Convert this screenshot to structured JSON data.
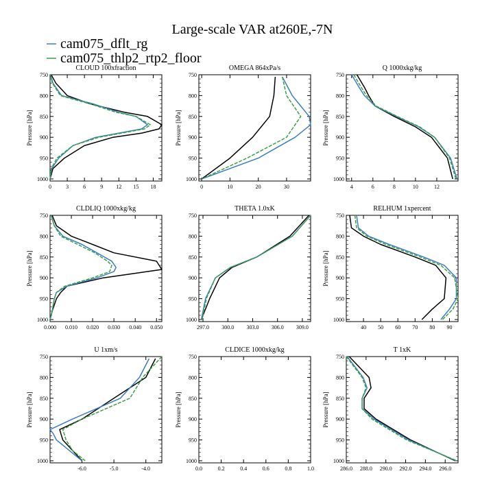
{
  "title": "Large-scale VAR at260E,-7N",
  "legend": [
    {
      "label": "cam075_dflt_rg",
      "color": "#3a7dc4"
    },
    {
      "label": "cam075_thlp2_rtp2_floor",
      "color": "#3aa040"
    }
  ],
  "colors": {
    "ref": "#000000",
    "dflt": "#3a7dc4",
    "thlp2": "#3aa040"
  },
  "ylabel": "Pressure [hPa]",
  "chart_data": [
    {
      "type": "line",
      "title": "CLOUD  100xfraction",
      "ylabel": "Pressure [hPa]",
      "xlim": [
        0,
        19.5
      ],
      "xticks": [
        0,
        3,
        6,
        9,
        12,
        15,
        18
      ],
      "xtick_labels": [
        "0",
        "3",
        "6",
        "9",
        "12",
        "15",
        "18"
      ],
      "ylim": [
        1005,
        750
      ],
      "yticks": [
        750,
        800,
        850,
        900,
        950,
        1000
      ],
      "ytick_labels": [
        "750",
        "800",
        "850",
        "900",
        "950",
        "1000"
      ],
      "series": [
        {
          "key": "ref",
          "p": [
            750,
            770,
            800,
            820,
            840,
            850,
            870,
            880,
            890,
            900,
            920,
            950,
            975,
            1000
          ],
          "x": [
            0.2,
            1,
            3,
            7,
            13,
            17,
            19.5,
            19,
            16,
            11,
            6,
            2.5,
            0.5,
            0
          ]
        },
        {
          "key": "dflt",
          "p": [
            750,
            770,
            800,
            820,
            840,
            850,
            870,
            880,
            890,
            900,
            920,
            950,
            975,
            1000
          ],
          "x": [
            0.1,
            0.5,
            2,
            7.5,
            12,
            15,
            17,
            16,
            12,
            8,
            4,
            1.5,
            0.3,
            0
          ]
        },
        {
          "key": "thlp2",
          "p": [
            750,
            770,
            800,
            820,
            840,
            850,
            870,
            880,
            890,
            900,
            920,
            950,
            975,
            1000
          ],
          "x": [
            0.1,
            0.4,
            1.8,
            7,
            11.5,
            15,
            17.5,
            16.5,
            12.5,
            8.5,
            4,
            1.2,
            0.2,
            0
          ]
        }
      ]
    },
    {
      "type": "line",
      "title": "OMEGA  864xPa/s",
      "ylabel": "Pressure [hPa]",
      "xlim": [
        -1,
        38.5
      ],
      "xticks": [
        0,
        10,
        20,
        30
      ],
      "xtick_labels": [
        "0",
        "10",
        "20",
        "30"
      ],
      "ylim": [
        1005,
        750
      ],
      "yticks": [
        750,
        800,
        850,
        900,
        950,
        1000
      ],
      "ytick_labels": [
        "750",
        "800",
        "850",
        "900",
        "950",
        "1000"
      ],
      "series": [
        {
          "key": "ref",
          "p": [
            755,
            800,
            850,
            900,
            950,
            1000
          ],
          "x": [
            26,
            25.5,
            24,
            18,
            10,
            0
          ]
        },
        {
          "key": "dflt",
          "p": [
            755,
            800,
            850,
            870,
            900,
            950,
            1000
          ],
          "x": [
            28.5,
            32,
            38,
            38.5,
            33,
            20,
            0
          ]
        },
        {
          "key": "thlp2",
          "p": [
            755,
            800,
            850,
            900,
            950,
            1000
          ],
          "x": [
            28.5,
            30,
            35,
            30,
            16,
            0
          ]
        }
      ]
    },
    {
      "type": "line",
      "title": "Q  1000xkg/kg",
      "ylabel": "Pressure [hPa]",
      "xlim": [
        3.5,
        14
      ],
      "xticks": [
        4,
        6,
        8,
        10,
        12
      ],
      "xtick_labels": [
        "4",
        "6",
        "8",
        "10",
        "12"
      ],
      "ylim": [
        1005,
        750
      ],
      "yticks": [
        750,
        800,
        850,
        900,
        950,
        1000
      ],
      "ytick_labels": [
        "750",
        "800",
        "850",
        "900",
        "950",
        "1000"
      ],
      "series": [
        {
          "key": "ref",
          "p": [
            750,
            780,
            800,
            825,
            850,
            875,
            900,
            950,
            1000
          ],
          "x": [
            4.5,
            5.2,
            5.6,
            6.2,
            8,
            10,
            11.5,
            13,
            13.5
          ]
        },
        {
          "key": "dflt",
          "p": [
            750,
            780,
            800,
            825,
            850,
            875,
            900,
            950,
            1000
          ],
          "x": [
            4.0,
            4.7,
            5.2,
            6.2,
            8.2,
            10.3,
            11.8,
            13.3,
            13.9
          ]
        },
        {
          "key": "thlp2",
          "p": [
            750,
            780,
            800,
            825,
            850,
            875,
            900,
            950,
            1000
          ],
          "x": [
            4.2,
            4.9,
            5.4,
            6.3,
            8.3,
            10.4,
            11.8,
            13.2,
            13.8
          ]
        }
      ]
    },
    {
      "type": "line",
      "title": "CLDLIQ  1000xkg/kg",
      "ylabel": "Pressure [hPa]",
      "xlim": [
        0,
        0.0525
      ],
      "xticks": [
        0,
        0.01,
        0.02,
        0.03,
        0.04,
        0.05
      ],
      "xtick_labels": [
        "0.000",
        "0.010",
        "0.020",
        "0.030",
        "0.040",
        "0.050"
      ],
      "ylim": [
        1005,
        750
      ],
      "yticks": [
        750,
        800,
        850,
        900,
        950,
        1000
      ],
      "ytick_labels": [
        "750",
        "800",
        "850",
        "900",
        "950",
        "1000"
      ],
      "series": [
        {
          "key": "ref",
          "p": [
            750,
            775,
            800,
            820,
            840,
            860,
            880,
            900,
            920,
            935,
            950,
            980,
            1000
          ],
          "x": [
            0.001,
            0.003,
            0.01,
            0.02,
            0.03,
            0.05,
            0.0525,
            0.025,
            0.008,
            0.005,
            0.003,
            0.001,
            0
          ]
        },
        {
          "key": "dflt",
          "p": [
            750,
            775,
            800,
            820,
            840,
            860,
            875,
            885,
            900,
            920,
            935,
            950,
            980,
            1000
          ],
          "x": [
            0.0005,
            0.002,
            0.006,
            0.015,
            0.022,
            0.029,
            0.031,
            0.03,
            0.022,
            0.008,
            0.003,
            0.002,
            0.001,
            0
          ]
        },
        {
          "key": "thlp2",
          "p": [
            750,
            775,
            800,
            820,
            840,
            860,
            870,
            885,
            900,
            920,
            935,
            950,
            980,
            1000
          ],
          "x": [
            0.0005,
            0.002,
            0.005,
            0.013,
            0.021,
            0.027,
            0.029,
            0.028,
            0.02,
            0.007,
            0.003,
            0.002,
            0.001,
            0
          ]
        }
      ]
    },
    {
      "type": "line",
      "title": "THETA  1.0xK",
      "ylabel": "",
      "xlim": [
        296.5,
        310
      ],
      "xticks": [
        297,
        300,
        303,
        306,
        309
      ],
      "xtick_labels": [
        "297.0",
        "300.0",
        "303.0",
        "306.0",
        "309.0"
      ],
      "ylim": [
        1005,
        750
      ],
      "yticks": [
        750,
        800,
        850,
        900,
        950,
        1000
      ],
      "ytick_labels": [
        "750",
        "800",
        "850",
        "900",
        "950",
        "1000"
      ],
      "series": [
        {
          "key": "ref",
          "p": [
            750,
            800,
            850,
            875,
            900,
            950,
            1000
          ],
          "x": [
            309.8,
            307.5,
            303.5,
            300.5,
            299,
            297.8,
            296.8
          ]
        },
        {
          "key": "dflt",
          "p": [
            750,
            800,
            850,
            875,
            900,
            950,
            1000
          ],
          "x": [
            310,
            307.8,
            303.5,
            300.3,
            298.5,
            297.3,
            296.8
          ]
        },
        {
          "key": "thlp2",
          "p": [
            750,
            800,
            850,
            875,
            900,
            950,
            1000
          ],
          "x": [
            310,
            307.8,
            303.5,
            300.3,
            298.5,
            297.4,
            296.9
          ]
        }
      ]
    },
    {
      "type": "line",
      "title": "RELHUM  1xpercent",
      "ylabel": "Pressure [hPa]",
      "xlim": [
        30,
        95
      ],
      "xticks": [
        40,
        50,
        60,
        70,
        80,
        90
      ],
      "xtick_labels": [
        "40",
        "50",
        "60",
        "70",
        "80",
        "90"
      ],
      "ylim": [
        1005,
        750
      ],
      "yticks": [
        750,
        800,
        850,
        900,
        950,
        1000
      ],
      "ytick_labels": [
        "750",
        "800",
        "850",
        "900",
        "950",
        "1000"
      ],
      "series": [
        {
          "key": "ref",
          "p": [
            750,
            780,
            800,
            820,
            850,
            870,
            900,
            950,
            975,
            1000
          ],
          "x": [
            32,
            33,
            40,
            50,
            70,
            82,
            88,
            87,
            80,
            74
          ]
        },
        {
          "key": "dflt",
          "p": [
            750,
            780,
            800,
            820,
            850,
            870,
            900,
            950,
            975,
            1000
          ],
          "x": [
            36,
            37,
            43,
            55,
            75,
            87,
            94,
            94,
            90,
            85
          ]
        },
        {
          "key": "thlp2",
          "p": [
            750,
            780,
            800,
            820,
            850,
            870,
            900,
            950,
            975,
            1000
          ],
          "x": [
            35,
            36,
            42,
            53,
            73,
            85,
            93,
            95,
            92,
            86
          ]
        }
      ]
    },
    {
      "type": "line",
      "title": "U  1xm/s",
      "ylabel": "Pressure [hPa]",
      "xlim": [
        -7,
        -3.5
      ],
      "xticks": [
        -6,
        -5,
        -4
      ],
      "xtick_labels": [
        "-6.0",
        "-5.0",
        "-4.0"
      ],
      "ylim": [
        1005,
        750
      ],
      "yticks": [
        750,
        800,
        850,
        900,
        950,
        1000
      ],
      "ytick_labels": [
        "750",
        "800",
        "850",
        "900",
        "950",
        "1000"
      ],
      "series": [
        {
          "key": "ref",
          "p": [
            755,
            800,
            850,
            900,
            925,
            950,
            975,
            1000
          ],
          "x": [
            -3.7,
            -4.0,
            -5.0,
            -6.0,
            -6.7,
            -6.6,
            -6.3,
            -6.0
          ]
        },
        {
          "key": "dflt",
          "p": [
            755,
            800,
            850,
            900,
            925,
            935,
            950,
            975,
            1000
          ],
          "x": [
            -3.9,
            -4.2,
            -4.8,
            -6.3,
            -7.0,
            -6.9,
            -6.8,
            -6.4,
            -6.0
          ]
        },
        {
          "key": "thlp2",
          "p": [
            750,
            800,
            850,
            900,
            925,
            950,
            975,
            1000
          ],
          "x": [
            -3.5,
            -4.1,
            -4.5,
            -6.0,
            -6.6,
            -6.5,
            -6.3,
            -5.9
          ]
        }
      ]
    },
    {
      "type": "line",
      "title": "CLDICE  1000xkg/kg",
      "ylabel": "Pressure [hPa]",
      "xlim": [
        0,
        1
      ],
      "xticks": [
        0,
        0.2,
        0.4,
        0.6,
        0.8,
        1.0
      ],
      "xtick_labels": [
        "0.0",
        "0.2",
        "0.4",
        "0.6",
        "0.8",
        "1.0"
      ],
      "ylim": [
        1005,
        750
      ],
      "yticks": [
        750,
        800,
        850,
        900,
        950,
        1000
      ],
      "ytick_labels": [
        "750",
        "800",
        "850",
        "900",
        "950",
        "1000"
      ],
      "series": []
    },
    {
      "type": "line",
      "title": "T  1xK",
      "ylabel": "Pressure [hPa]",
      "xlim": [
        286,
        297.3
      ],
      "xticks": [
        286,
        288,
        290,
        292,
        294,
        296
      ],
      "xtick_labels": [
        "286.0",
        "288.0",
        "290.0",
        "292.0",
        "294.0",
        "296.0"
      ],
      "ylim": [
        1005,
        750
      ],
      "yticks": [
        750,
        800,
        850,
        900,
        950,
        1000
      ],
      "ytick_labels": [
        "750",
        "800",
        "850",
        "900",
        "950",
        "1000"
      ],
      "series": [
        {
          "key": "ref",
          "p": [
            750,
            800,
            825,
            850,
            875,
            900,
            950,
            1000
          ],
          "x": [
            286.3,
            288.3,
            288.5,
            287.8,
            287.8,
            289,
            292.5,
            297
          ]
        },
        {
          "key": "dflt",
          "p": [
            750,
            800,
            825,
            850,
            875,
            900,
            950,
            1000
          ],
          "x": [
            286.1,
            287.7,
            288.1,
            287.6,
            287.6,
            288.8,
            292.3,
            297.1
          ]
        },
        {
          "key": "thlp2",
          "p": [
            750,
            800,
            825,
            850,
            875,
            900,
            950,
            1000
          ],
          "x": [
            286.0,
            287.6,
            288.0,
            287.6,
            287.6,
            288.6,
            292.1,
            297.2
          ]
        }
      ]
    }
  ]
}
